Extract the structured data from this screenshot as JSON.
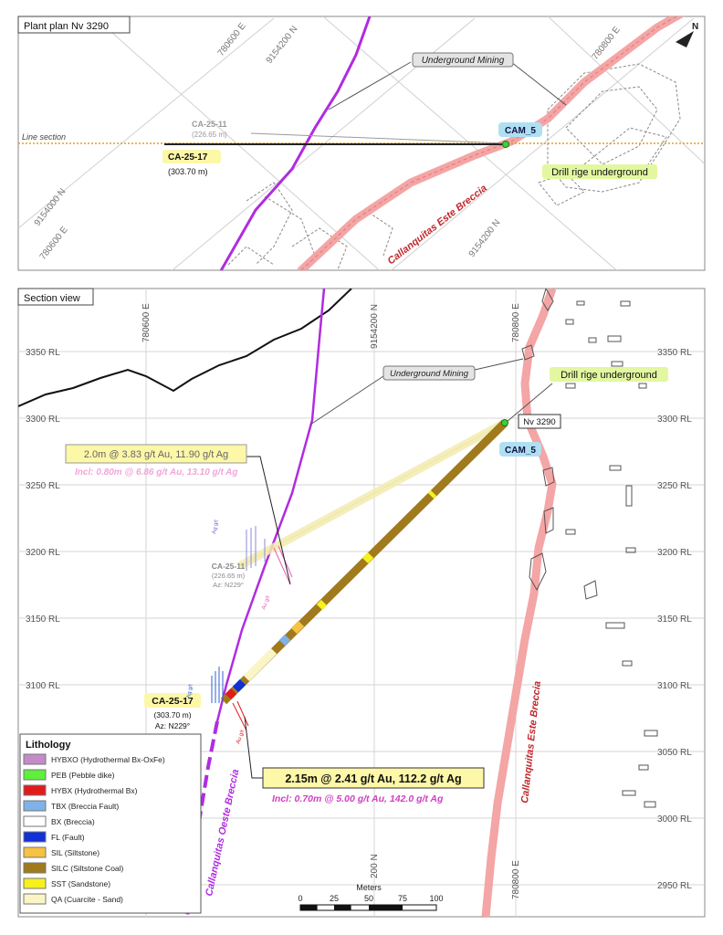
{
  "plan": {
    "title": "Plant plan Nv 3290",
    "grid_labels": {
      "e780600": "780600 E",
      "n9154200": "9154200 N",
      "e780800": "780800 E",
      "n9154000": "9154000 N",
      "e780600b": "780600 E",
      "n9154200b": "9154200 N"
    },
    "line_section": "Line section",
    "underground_mining": "Underground Mining",
    "hole1_name": "CA-25-11",
    "hole1_len": "(226.65 m)",
    "hole2_name": "CA-25-17",
    "hole2_len": "(303.70 m)",
    "collar": "CAM_5",
    "drill_rig": "Drill rige underground",
    "breccia": "Callanquitas Este Breccia",
    "north": "N"
  },
  "section": {
    "title": "Section view",
    "rl_labels": [
      "3350 RL",
      "3300 RL",
      "3250 RL",
      "3200 RL",
      "3150 RL",
      "3100 RL",
      "3050 RL",
      "3000 RL",
      "2950 RL"
    ],
    "top_grid": {
      "e780600": "780600 E",
      "n9154200": "9154200 N",
      "e780800": "780800 E"
    },
    "bottom_grid": {
      "n200": "200 N",
      "e780800": "780800 E"
    },
    "underground_mining": "Underground Mining",
    "drill_rig": "Drill rige underground",
    "nv": "Nv 3290",
    "collar": "CAM_5",
    "int1_main": "2.0m @ 3.83 g/t Au, 11.90 g/t Ag",
    "int1_incl": "Incl: 0.80m @ 6.86 g/t Au, 13.10 g/t Ag",
    "hole1_name": "CA-25-11",
    "hole1_len": "(226.65 m)",
    "hole1_az": "Az: N229°",
    "hole2_name": "CA-25-17",
    "hole2_len": "(303.70 m)",
    "hole2_az": "Az: N229°",
    "int2_main": "2.15m @ 2.41 g/t Au, 112.2 g/t Ag",
    "int2_incl": "Incl: 0.70m @ 5.00 g/t Au, 142.0 g/t Ag",
    "breccia_east": "Callanquitas Este Breccia",
    "breccia_west": "Callanquitas Oeste Breccia",
    "question": "?",
    "ag_label": "Ag g/t",
    "au_label": "Au g/t"
  },
  "scalebar": {
    "title": "Meters",
    "ticks": [
      "0",
      "25",
      "50",
      "75",
      "100"
    ]
  },
  "legend": {
    "title": "Lithology",
    "items": [
      {
        "label": "HYBXO (Hydrothermal Bx-OxFe)",
        "color": "#c38bc9"
      },
      {
        "label": "PEB (Pebble dike)",
        "color": "#5ef03a"
      },
      {
        "label": "HYBX (Hydrothermal Bx)",
        "color": "#e31a1c"
      },
      {
        "label": "TBX (Breccia Fault)",
        "color": "#7fb2e8"
      },
      {
        "label": "BX (Breccia)",
        "color": "#ffffff"
      },
      {
        "label": "FL (Fault)",
        "color": "#1030d8"
      },
      {
        "label": "SIL (Siltstone)",
        "color": "#f5c242"
      },
      {
        "label": "SILC (Siltstone Coal)",
        "color": "#a07a1c"
      },
      {
        "label": "SST (Sandstone)",
        "color": "#f7f01c"
      },
      {
        "label": "QA (Cuarcite - Sand)",
        "color": "#fbf5c6"
      }
    ]
  },
  "colors": {
    "fault_purple": "#b02ce0",
    "breccia_pink": "#f4a5a5",
    "breccia_text": "#c0282c",
    "section_line": "#e0a020",
    "callout_yellow": "#fdf7a8",
    "collar_blue": "#aee0f2",
    "drill_green": "#e3f7a0",
    "incl_pink": "#e85db4",
    "incl2_pink": "#d040c0"
  }
}
